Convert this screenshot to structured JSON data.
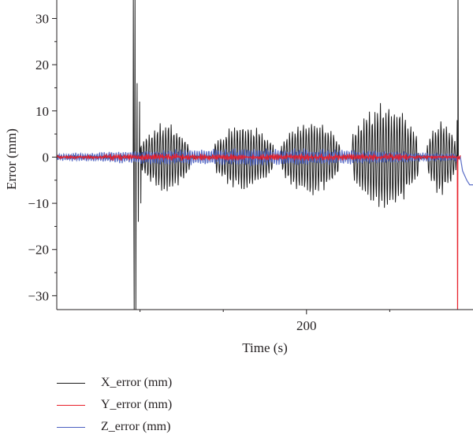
{
  "chart_data": {
    "type": "line",
    "title": "",
    "xlabel": "Time (s)",
    "ylabel": "Error (mm)",
    "xlim": [
      140,
      240
    ],
    "ylim": [
      -33,
      34
    ],
    "x_ticks": [
      200
    ],
    "y_ticks": [
      30,
      20,
      10,
      0,
      -10,
      -20,
      -30
    ],
    "grid": false,
    "legend_position": "bottom",
    "series": [
      {
        "name": "X_error (mm)",
        "color": "#1a1a1a",
        "description_segments": [
          {
            "t_start": 140,
            "t_end": 158,
            "behavior": "near zero"
          },
          {
            "t_start": 158,
            "t_end": 160,
            "behavior": "spikes to +34 and -33"
          },
          {
            "t_start": 160,
            "t_end": 172,
            "amplitude": 7
          },
          {
            "t_start": 178,
            "t_end": 192,
            "amplitude": 7
          },
          {
            "t_start": 194,
            "t_end": 208,
            "amplitude": 8
          },
          {
            "t_start": 211,
            "t_end": 227,
            "amplitude": 11
          },
          {
            "t_start": 229,
            "t_end": 236,
            "amplitude": 8
          },
          {
            "t_start": 236,
            "t_end": 237,
            "behavior": "rises to +34"
          }
        ]
      },
      {
        "name": "Y_error (mm)",
        "color": "#e8202a",
        "description_segments": [
          {
            "t_start": 140,
            "t_end": 236,
            "amplitude": 0.8
          },
          {
            "t_start": 236,
            "t_end": 237,
            "behavior": "drops to -33"
          }
        ]
      },
      {
        "name": "Z_error (mm)",
        "color": "#4a5fc1",
        "description_segments": [
          {
            "t_start": 140,
            "t_end": 236,
            "amplitude": 4
          },
          {
            "t_start": 236,
            "t_end": 240,
            "behavior": "drifts to -6"
          }
        ]
      }
    ]
  }
}
